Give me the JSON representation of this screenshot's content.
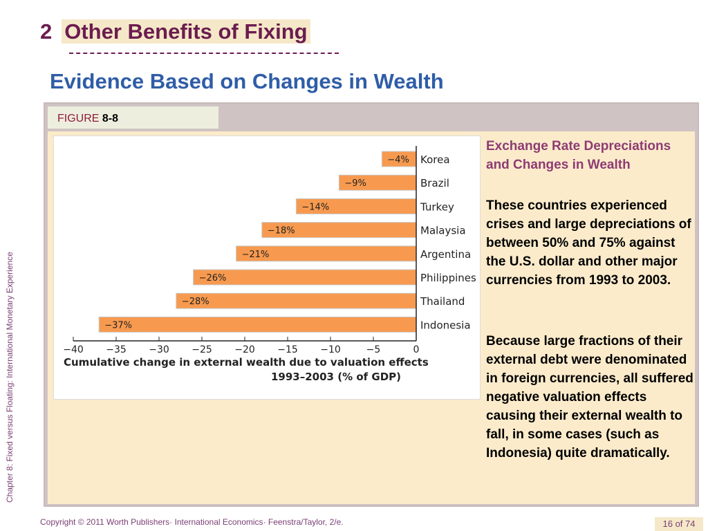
{
  "sidebar_text": "Chapter 8: Fixed versus Floating: International Monetary Experience",
  "section": {
    "number": "2",
    "title": "Other Benefits of Fixing"
  },
  "subtitle": "Evidence Based on Changes in Wealth",
  "figure": {
    "label": "FIGURE",
    "number": "8-8"
  },
  "side_text": {
    "title": "Exchange Rate Depreciations and Changes in Wealth",
    "para1": "These countries experienced crises and large depreciations of between 50% and 75% against the U.S. dollar and other major currencies from 1993 to 2003.",
    "para2": "Because large fractions of their external debt were denominated in foreign currencies, all suffered negative valuation effects causing their external wealth to fall, in some cases (such as Indonesia) quite dramatically."
  },
  "footer": "Copyright © 2011 Worth Publishers· International Economics· Feenstra/Taylor, 2/e.",
  "page_number": "16 of 74",
  "colors": {
    "bar": "#f79a4f",
    "title": "#6b1c4f",
    "subtitle": "#2f5da7",
    "accent": "#8e3b73"
  },
  "chart_data": {
    "type": "bar",
    "orientation": "horizontal",
    "categories": [
      "Korea",
      "Brazil",
      "Turkey",
      "Malaysia",
      "Argentina",
      "Philippines",
      "Thailand",
      "Indonesia"
    ],
    "values": [
      -4,
      -9,
      -14,
      -18,
      -21,
      -26,
      -28,
      -37
    ],
    "data_labels": [
      "−4%",
      "−9%",
      "−14%",
      "−18%",
      "−21%",
      "−26%",
      "−28%",
      "−37%"
    ],
    "xlabel_line1": "Cumulative change in external wealth due to valuation effects",
    "xlabel_line2": "1993–2003 (% of GDP)",
    "xlim": [
      -40,
      0
    ],
    "xticks": [
      -40,
      -35,
      -30,
      -25,
      -20,
      -15,
      -10,
      -5,
      0
    ],
    "xtick_labels": [
      "−40",
      "−35",
      "−30",
      "−25",
      "−20",
      "−15",
      "−10",
      "−5",
      "0"
    ],
    "grid": false
  }
}
